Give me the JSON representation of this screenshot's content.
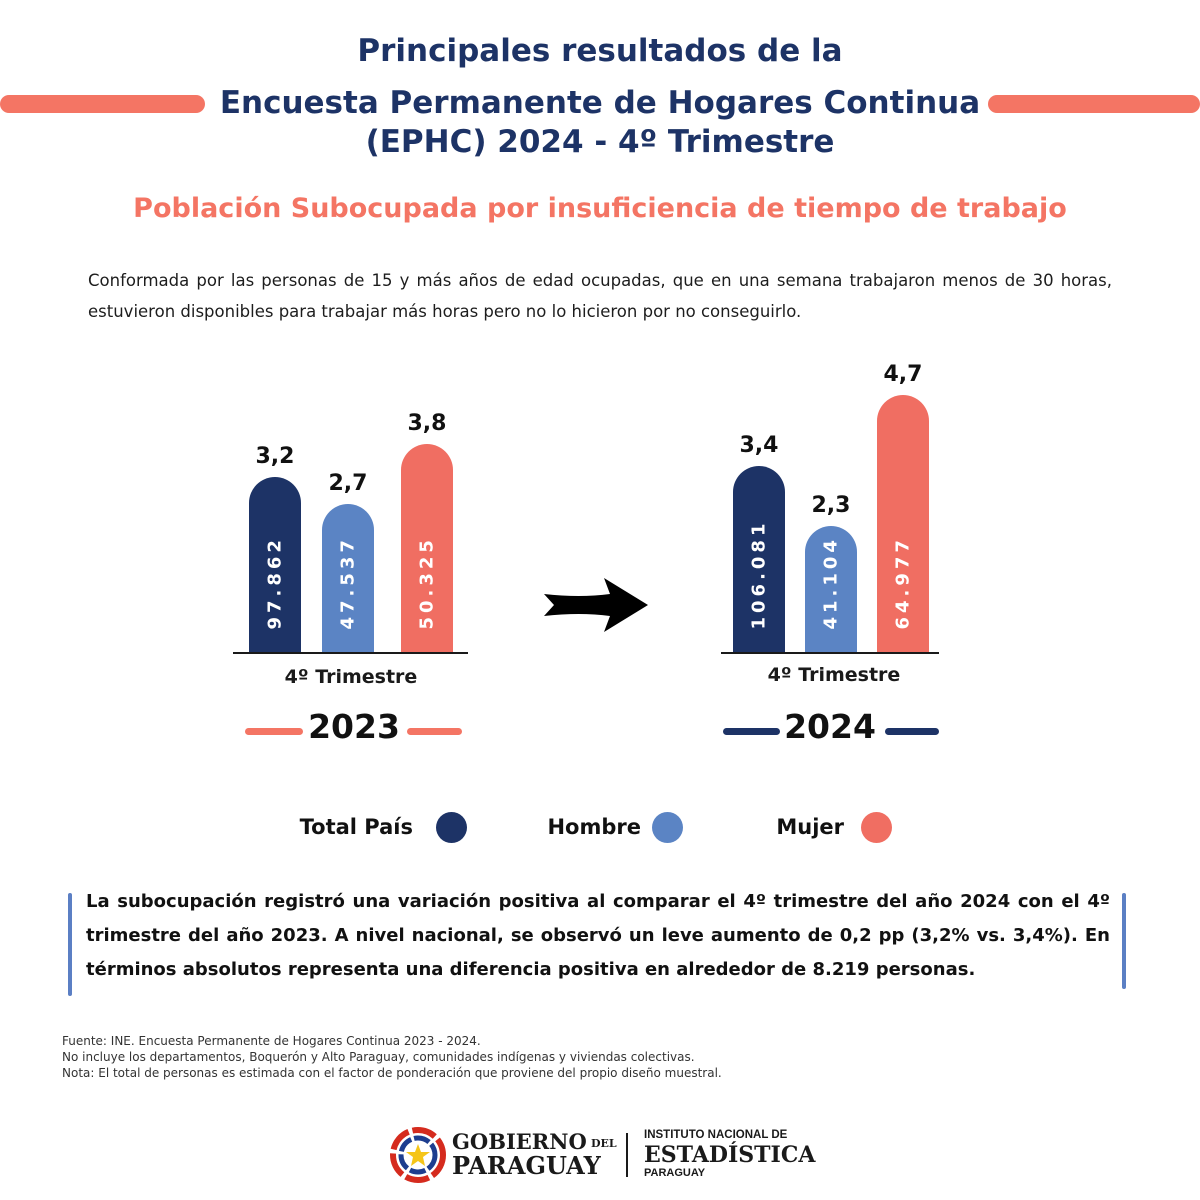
{
  "header": {
    "title_line1": "Principales resultados de la",
    "title_line2": "Encuesta Permanente de Hogares Continua",
    "title_line3": "(EPHC) 2024 - 4º Trimestre",
    "subtitle": "Población Subocupada por insuficiencia de tiempo de trabajo",
    "definition": "Conformada por las personas de 15 y más años de edad ocupadas, que en una semana trabajaron menos de 30 horas, estuvieron disponibles para trabajar más horas pero no lo hicieron por no conseguirlo."
  },
  "colors": {
    "total": "#1d3366",
    "hombre": "#5b84c4",
    "mujer": "#f06e62",
    "accent_orange": "#f47564",
    "title_navy": "#1d3366"
  },
  "chart_data": [
    {
      "type": "bar",
      "year_label": "2023",
      "period_label": "4º Trimestre",
      "categories": [
        "Total País",
        "Hombre",
        "Mujer"
      ],
      "values": [
        3.2,
        2.7,
        3.8
      ],
      "value_labels": [
        "3,2",
        "2,7",
        "3,8"
      ],
      "counts": [
        "97.862",
        "47.537",
        "50.325"
      ],
      "ylim": [
        0,
        5
      ]
    },
    {
      "type": "bar",
      "year_label": "2024",
      "period_label": "4º Trimestre",
      "categories": [
        "Total País",
        "Hombre",
        "Mujer"
      ],
      "values": [
        3.4,
        2.3,
        4.7
      ],
      "value_labels": [
        "3,4",
        "2,3",
        "4,7"
      ],
      "counts": [
        "106.081",
        "41.104",
        "64.977"
      ],
      "ylim": [
        0,
        5
      ]
    }
  ],
  "legend": [
    {
      "label": "Total País",
      "color": "#1d3366"
    },
    {
      "label": "Hombre",
      "color": "#5b84c4"
    },
    {
      "label": "Mujer",
      "color": "#f06e62"
    }
  ],
  "summary": "La subocupación registró una variación positiva al comparar el 4º trimestre del año 2024 con el 4º trimestre del año 2023. A nivel nacional, se observó un leve aumento de 0,2 pp (3,2% vs. 3,4%). En términos absolutos representa una diferencia positiva en alrededor de 8.219 personas.",
  "notes": [
    "Fuente: INE. Encuesta Permanente de Hogares Continua 2023 - 2024.",
    "No incluye los departamentos, Boquerón y Alto Paraguay, comunidades indígenas y viviendas colectivas.",
    "Nota: El total de personas es estimada con el factor de ponderación que proviene del propio diseño muestral."
  ],
  "logos": {
    "gobierno_line1": "GOBIERNO",
    "gobierno_del": "DEL",
    "gobierno_line2": "PARAGUAY",
    "ine_line1": "INSTITUTO NACIONAL DE",
    "ine_line2": "ESTADÍSTICA",
    "ine_line3": "PARAGUAY"
  }
}
